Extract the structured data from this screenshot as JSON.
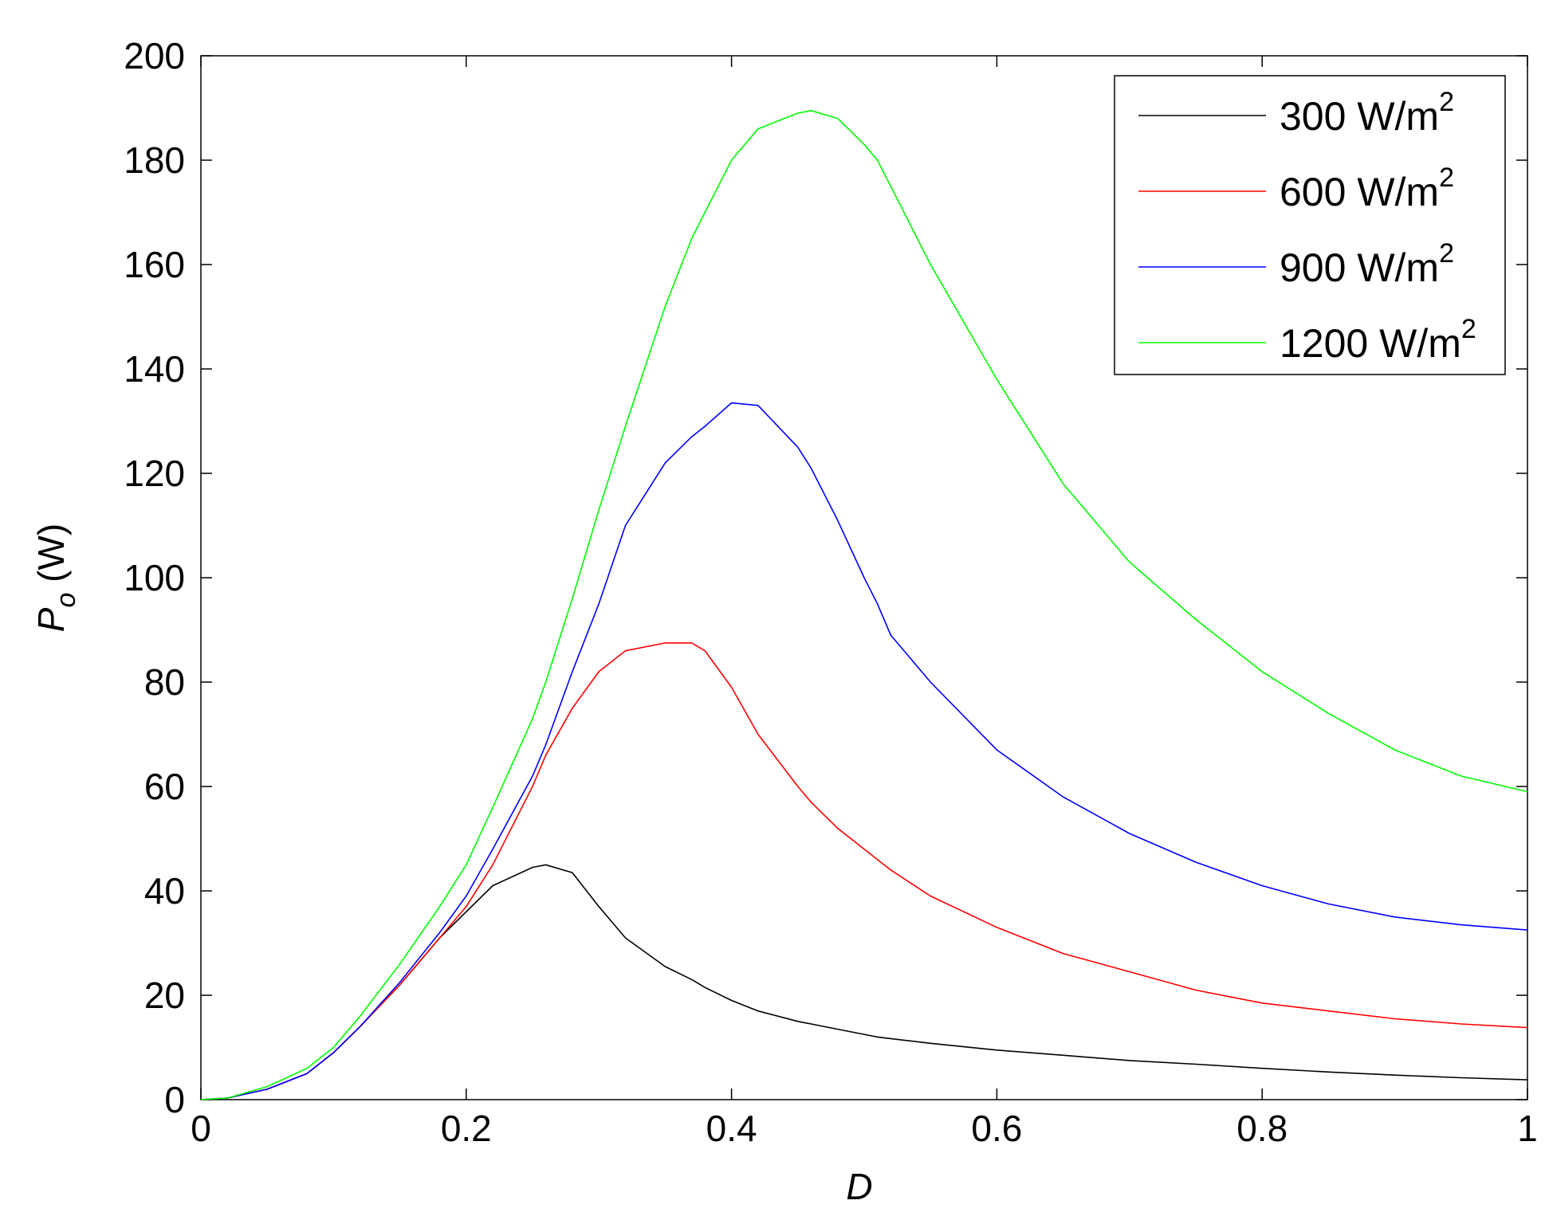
{
  "chart_data": {
    "type": "line",
    "title": "",
    "xlabel": "D",
    "ylabel_main": "P",
    "ylabel_sub": "o",
    "ylabel_unit": " (W)",
    "xlim": [
      0,
      1
    ],
    "ylim": [
      0,
      200
    ],
    "xticks": [
      0,
      0.2,
      0.4,
      0.6,
      0.8,
      1
    ],
    "xtick_labels": [
      "0",
      "0.2",
      "0.4",
      "0.6",
      "0.8",
      "1"
    ],
    "yticks": [
      0,
      20,
      40,
      60,
      80,
      100,
      120,
      140,
      160,
      180,
      200
    ],
    "ytick_labels": [
      "0",
      "20",
      "40",
      "60",
      "80",
      "100",
      "120",
      "140",
      "160",
      "180",
      "200"
    ],
    "grid": false,
    "legend_position": "top-right",
    "x": [
      0,
      0.02,
      0.05,
      0.08,
      0.1,
      0.12,
      0.15,
      0.18,
      0.2,
      0.22,
      0.25,
      0.26,
      0.28,
      0.3,
      0.32,
      0.35,
      0.37,
      0.38,
      0.4,
      0.42,
      0.45,
      0.46,
      0.48,
      0.5,
      0.51,
      0.52,
      0.55,
      0.6,
      0.65,
      0.7,
      0.75,
      0.8,
      0.85,
      0.9,
      0.95,
      1.0
    ],
    "series": [
      {
        "name": "300 W/m",
        "sup": "2",
        "color": "#000000",
        "values": [
          0,
          0.3,
          2,
          5,
          9,
          14,
          22,
          31,
          36,
          41,
          44.5,
          45,
          43.5,
          37,
          31,
          25.5,
          23,
          21.5,
          19,
          17,
          15,
          14.5,
          13.5,
          12.5,
          12,
          11.7,
          10.8,
          9.5,
          8.5,
          7.5,
          6.8,
          6,
          5.3,
          4.7,
          4.2,
          3.8
        ]
      },
      {
        "name": "600 W/m",
        "sup": "2",
        "color": "#ff0000",
        "values": [
          0,
          0.3,
          2,
          5,
          9,
          14,
          22,
          31,
          37,
          45,
          60,
          66,
          75,
          82,
          86,
          87.5,
          87.5,
          86,
          79,
          70,
          60,
          57,
          52,
          48,
          46,
          44,
          39,
          33,
          28,
          24.5,
          21,
          18.5,
          17,
          15.5,
          14.5,
          13.8
        ]
      },
      {
        "name": "900 W/m",
        "sup": "2",
        "color": "#0000ff",
        "values": [
          0,
          0.3,
          2,
          5,
          9,
          14,
          22.5,
          32,
          39,
          48,
          62,
          68,
          82,
          95,
          110,
          122,
          127,
          129,
          133.5,
          133,
          125,
          121,
          111,
          100,
          95,
          89,
          80,
          67,
          58,
          51,
          45.5,
          41,
          37.5,
          35,
          33.5,
          32.5
        ]
      },
      {
        "name": "1200 W/m",
        "sup": "2",
        "color": "#00ff00",
        "values": [
          0,
          0.3,
          2.5,
          6,
          10,
          16,
          26,
          37,
          45,
          56,
          73,
          80,
          96,
          113,
          129,
          152,
          165,
          170,
          180,
          186,
          189,
          189.5,
          188,
          183,
          180,
          175,
          160,
          138,
          118,
          103,
          92,
          82,
          74,
          67,
          62,
          59
        ]
      }
    ]
  }
}
